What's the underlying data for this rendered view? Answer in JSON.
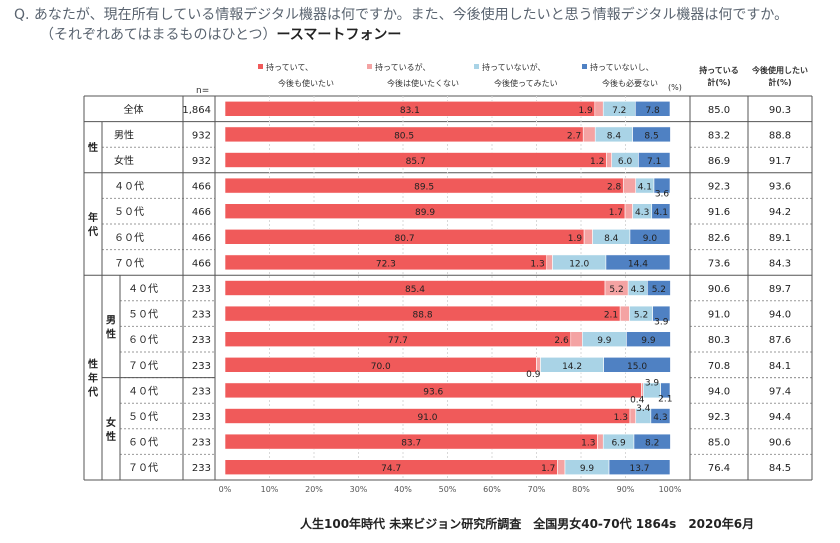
{
  "title": {
    "line1": "Q. あなたが、現在所有している情報デジタル機器は何ですか。また、今後使用したいと思う情報デジタル機器は何ですか。",
    "line2": "（それぞれあてはまるものはひとつ）",
    "line2_suffix": "ースマートフォンー"
  },
  "footer": "人生100年時代 未来ビジョン研究所調査　全国男女40-70代 1864s　2020年6月",
  "n_label": "n=",
  "percent_unit": "(%)",
  "sum_headers": [
    [
      "持っている",
      "計(%)"
    ],
    [
      "今後使用したい",
      "計(%)"
    ]
  ],
  "colors": {
    "s1": "#f05a5a",
    "s2": "#f4a3a3",
    "s3": "#a9d3e6",
    "s4": "#4f81c3"
  },
  "chart_data": {
    "type": "bar",
    "stacked": true,
    "orientation": "horizontal",
    "series": [
      {
        "name": "持っていて、今後も使いたい",
        "legend_lines": [
          "持っていて、",
          "今後も使いたい"
        ],
        "color": "#f05a5a",
        "values": [
          83.1,
          80.5,
          85.7,
          89.5,
          89.9,
          80.7,
          72.3,
          85.4,
          88.8,
          77.7,
          70.0,
          93.6,
          91.0,
          83.7,
          74.7
        ]
      },
      {
        "name": "持っているが、今後は使いたくない",
        "legend_lines": [
          "持っているが、",
          "今後は使いたくない"
        ],
        "color": "#f4a3a3",
        "values": [
          1.9,
          2.7,
          1.2,
          2.8,
          1.7,
          1.9,
          1.3,
          5.2,
          2.1,
          2.6,
          0.9,
          0.4,
          1.3,
          1.3,
          1.7
        ]
      },
      {
        "name": "持っていないが、今後使ってみたい",
        "legend_lines": [
          "持っていないが、",
          "今後使ってみたい"
        ],
        "color": "#a9d3e6",
        "values": [
          7.2,
          8.4,
          6.0,
          4.1,
          4.3,
          8.4,
          12.0,
          4.3,
          5.2,
          9.9,
          14.2,
          3.9,
          3.4,
          6.9,
          9.9
        ]
      },
      {
        "name": "持っていないし、今後も必要ない",
        "legend_lines": [
          "持っていないし、",
          "今後も必要ない"
        ],
        "color": "#4f81c3",
        "values": [
          7.8,
          8.5,
          7.1,
          3.6,
          4.1,
          9.0,
          14.4,
          5.2,
          3.9,
          9.9,
          15.0,
          2.1,
          4.3,
          8.2,
          13.7
        ]
      }
    ],
    "rows": [
      {
        "label": "全体",
        "n": "1,864",
        "own": "85.0",
        "want": "90.3"
      },
      {
        "label": "男性",
        "n": "932",
        "own": "83.2",
        "want": "88.8"
      },
      {
        "label": "女性",
        "n": "932",
        "own": "86.9",
        "want": "91.7"
      },
      {
        "label": "４０代",
        "n": "466",
        "own": "92.3",
        "want": "93.6"
      },
      {
        "label": "５０代",
        "n": "466",
        "own": "91.6",
        "want": "94.2"
      },
      {
        "label": "６０代",
        "n": "466",
        "own": "82.6",
        "want": "89.1"
      },
      {
        "label": "７０代",
        "n": "466",
        "own": "73.6",
        "want": "84.3"
      },
      {
        "label": "４０代",
        "n": "233",
        "own": "90.6",
        "want": "89.7"
      },
      {
        "label": "５０代",
        "n": "233",
        "own": "91.0",
        "want": "94.0"
      },
      {
        "label": "６０代",
        "n": "233",
        "own": "80.3",
        "want": "87.6"
      },
      {
        "label": "７０代",
        "n": "233",
        "own": "70.8",
        "want": "84.1"
      },
      {
        "label": "４０代",
        "n": "233",
        "own": "94.0",
        "want": "97.4"
      },
      {
        "label": "５０代",
        "n": "233",
        "own": "92.3",
        "want": "94.4"
      },
      {
        "label": "６０代",
        "n": "233",
        "own": "85.0",
        "want": "90.6"
      },
      {
        "label": "７０代",
        "n": "233",
        "own": "76.4",
        "want": "84.5"
      }
    ],
    "groups": [
      {
        "label": "性",
        "rows": [
          1,
          2
        ]
      },
      {
        "label": "年代",
        "rows": [
          3,
          6
        ]
      },
      {
        "label": "性年代",
        "rows": [
          7,
          14
        ]
      }
    ],
    "subgroups": [
      {
        "label": "男性",
        "rows": [
          7,
          10
        ]
      },
      {
        "label": "女性",
        "rows": [
          11,
          14
        ]
      }
    ],
    "x_ticks": [
      "0%",
      "10%",
      "20%",
      "30%",
      "40%",
      "50%",
      "60%",
      "70%",
      "80%",
      "90%",
      "100%"
    ],
    "xlim": [
      0,
      100
    ],
    "grid": true,
    "legend_position": "top"
  }
}
